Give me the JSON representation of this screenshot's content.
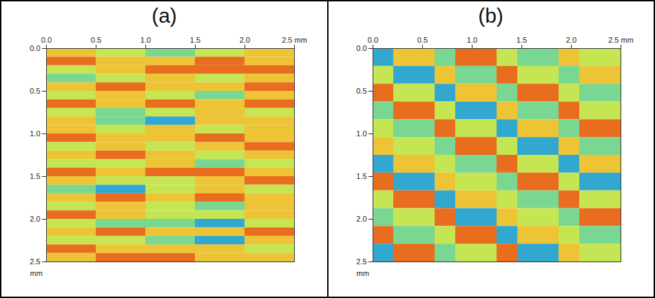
{
  "chart_data": [
    {
      "type": "heatmap",
      "title": "(a)",
      "xlim": [
        0,
        2.5
      ],
      "ylim": [
        0,
        2.5
      ],
      "xticks": [
        {
          "value": 0,
          "label": "0.0"
        },
        {
          "value": 0.5,
          "label": "0.5"
        },
        {
          "value": 1,
          "label": "1.0"
        },
        {
          "value": 1.5,
          "label": "1.5"
        },
        {
          "value": 2,
          "label": "2.0"
        },
        {
          "value": 2.5,
          "label": "2.5 mm"
        }
      ],
      "yticks": [
        {
          "value": 0,
          "label": "0.0"
        },
        {
          "value": 0.5,
          "label": "0.5"
        },
        {
          "value": 1,
          "label": "1.0"
        },
        {
          "value": 1.5,
          "label": "1.5"
        },
        {
          "value": 2,
          "label": "2.0"
        },
        {
          "value": 2.5,
          "label": "2.5"
        }
      ],
      "ylabel": "mm",
      "zlim": [
        -3,
        3
      ],
      "colors": [
        "#1040c0",
        "#30c8e8",
        "#a0e060",
        "#f0f040",
        "#f08020",
        "#d01010"
      ],
      "z": [
        [
          1,
          0,
          -1,
          0,
          1
        ],
        [
          2,
          1,
          1,
          2,
          1
        ],
        [
          0,
          1,
          2,
          2,
          2
        ],
        [
          -1,
          0,
          1,
          0,
          1
        ],
        [
          1,
          2,
          1,
          1,
          2
        ],
        [
          0,
          1,
          0,
          -1,
          1
        ],
        [
          2,
          1,
          2,
          1,
          2
        ],
        [
          0,
          -1,
          0,
          1,
          0
        ],
        [
          1,
          -1,
          -2,
          1,
          1
        ],
        [
          1,
          0,
          1,
          0,
          1
        ],
        [
          2,
          1,
          1,
          2,
          1
        ],
        [
          0,
          1,
          0,
          1,
          2
        ],
        [
          1,
          2,
          1,
          0,
          1
        ],
        [
          0,
          0,
          1,
          -1,
          0
        ],
        [
          2,
          1,
          2,
          2,
          1
        ],
        [
          1,
          0,
          0,
          1,
          2
        ],
        [
          -1,
          -2,
          0,
          1,
          0
        ],
        [
          1,
          2,
          1,
          2,
          1
        ],
        [
          0,
          1,
          0,
          -1,
          1
        ],
        [
          2,
          1,
          0,
          0,
          1
        ],
        [
          0,
          -1,
          -1,
          -2,
          0
        ],
        [
          1,
          2,
          1,
          1,
          2
        ],
        [
          0,
          0,
          -1,
          -2,
          1
        ],
        [
          2,
          1,
          1,
          1,
          0
        ],
        [
          1,
          2,
          2,
          1,
          1
        ]
      ]
    },
    {
      "type": "heatmap",
      "title": "(b)",
      "xlim": [
        0,
        2.5
      ],
      "ylim": [
        0,
        2.5
      ],
      "xticks": [
        {
          "value": 0,
          "label": "0.0"
        },
        {
          "value": 0.5,
          "label": "0.5"
        },
        {
          "value": 1,
          "label": "1.0"
        },
        {
          "value": 1.5,
          "label": "1.5"
        },
        {
          "value": 2,
          "label": "2.0"
        },
        {
          "value": 2.5,
          "label": "2.5 mm"
        }
      ],
      "yticks": [
        {
          "value": 0,
          "label": "0.0"
        },
        {
          "value": 0.5,
          "label": "0.5"
        },
        {
          "value": 1,
          "label": "1.0"
        },
        {
          "value": 1.5,
          "label": "1.5"
        },
        {
          "value": 2,
          "label": "2.0"
        },
        {
          "value": 2.5,
          "label": "2.5"
        }
      ],
      "ylabel": "mm",
      "zlim": [
        -3,
        3
      ],
      "colors": [
        "#1040c0",
        "#30c8e8",
        "#a0e060",
        "#f0f040",
        "#f08020",
        "#d01010"
      ],
      "z": [
        [
          -2,
          1,
          1,
          -1,
          2,
          2,
          0,
          -1,
          -1,
          1,
          0,
          0
        ],
        [
          0,
          -2,
          -2,
          1,
          -1,
          -1,
          2,
          0,
          0,
          -1,
          1,
          1
        ],
        [
          2,
          0,
          0,
          -2,
          1,
          1,
          -1,
          2,
          2,
          0,
          -1,
          -1
        ],
        [
          -1,
          2,
          2,
          0,
          -2,
          -2,
          1,
          -1,
          -1,
          2,
          0,
          0
        ],
        [
          0,
          -1,
          -1,
          2,
          0,
          0,
          -2,
          1,
          1,
          -1,
          2,
          2
        ],
        [
          1,
          0,
          0,
          -1,
          2,
          2,
          0,
          -2,
          -2,
          1,
          -1,
          -1
        ],
        [
          -2,
          1,
          1,
          0,
          -1,
          -1,
          2,
          0,
          0,
          -2,
          1,
          1
        ],
        [
          2,
          -2,
          -2,
          1,
          0,
          0,
          -1,
          2,
          2,
          0,
          -2,
          -2
        ],
        [
          0,
          2,
          2,
          -2,
          1,
          1,
          0,
          -1,
          -1,
          2,
          0,
          0
        ],
        [
          -1,
          0,
          0,
          2,
          -2,
          -2,
          1,
          0,
          0,
          -1,
          2,
          2
        ],
        [
          2,
          -1,
          -1,
          0,
          2,
          2,
          -2,
          1,
          1,
          0,
          -1,
          -1
        ],
        [
          -2,
          2,
          2,
          -1,
          0,
          0,
          2,
          -2,
          -2,
          1,
          0,
          0
        ]
      ]
    }
  ]
}
